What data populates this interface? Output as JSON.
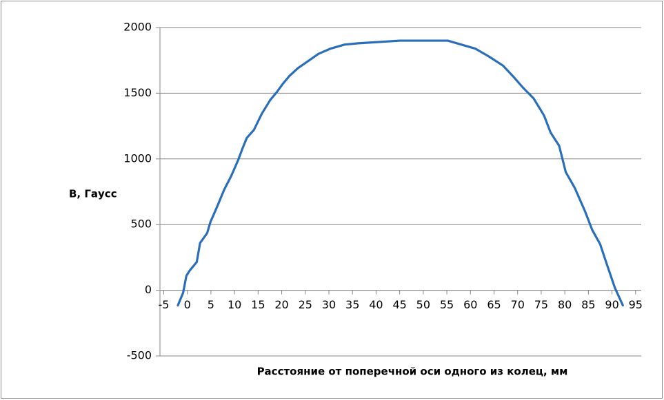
{
  "chart_data": {
    "type": "line",
    "xlabel": "Расстояние от поперечной оси одного из колец, мм",
    "ylabel": "В, Гаусс",
    "xlim": [
      -5.8,
      96.2
    ],
    "xticks": [
      -5,
      0,
      5,
      10,
      15,
      20,
      25,
      30,
      35,
      40,
      45,
      50,
      55,
      60,
      65,
      70,
      75,
      80,
      85,
      90,
      95
    ],
    "ylim": [
      -500,
      2000
    ],
    "yticks": [
      -500,
      0,
      500,
      1000,
      1500,
      2000
    ],
    "grid": true,
    "series": [
      {
        "color": "#2a6ebb",
        "x": [
          -2.0,
          -0.9,
          -0.2,
          0.5,
          2.0,
          2.7,
          4.2,
          4.9,
          6.3,
          7.8,
          9.3,
          10.7,
          11.7,
          12.6,
          14.1,
          15.8,
          17.6,
          19.0,
          20.2,
          21.6,
          23.4,
          25.6,
          27.8,
          30.4,
          33.3,
          36.2,
          40.6,
          45.0,
          49.4,
          55.2,
          58.1,
          61.0,
          63.9,
          66.9,
          69.0,
          71.2,
          73.4,
          75.6,
          77.0,
          78.8,
          80.2,
          82.1,
          84.3,
          85.8,
          87.5,
          88.7,
          90.6,
          92.3
        ],
        "values": [
          -115,
          -20,
          110,
          150,
          215,
          360,
          435,
          520,
          635,
          765,
          870,
          985,
          1080,
          1160,
          1220,
          1345,
          1450,
          1510,
          1570,
          1630,
          1690,
          1745,
          1800,
          1840,
          1870,
          1880,
          1890,
          1900,
          1900,
          1900,
          1870,
          1840,
          1780,
          1710,
          1630,
          1540,
          1460,
          1330,
          1200,
          1100,
          900,
          780,
          600,
          460,
          350,
          220,
          20,
          -115
        ]
      }
    ]
  }
}
